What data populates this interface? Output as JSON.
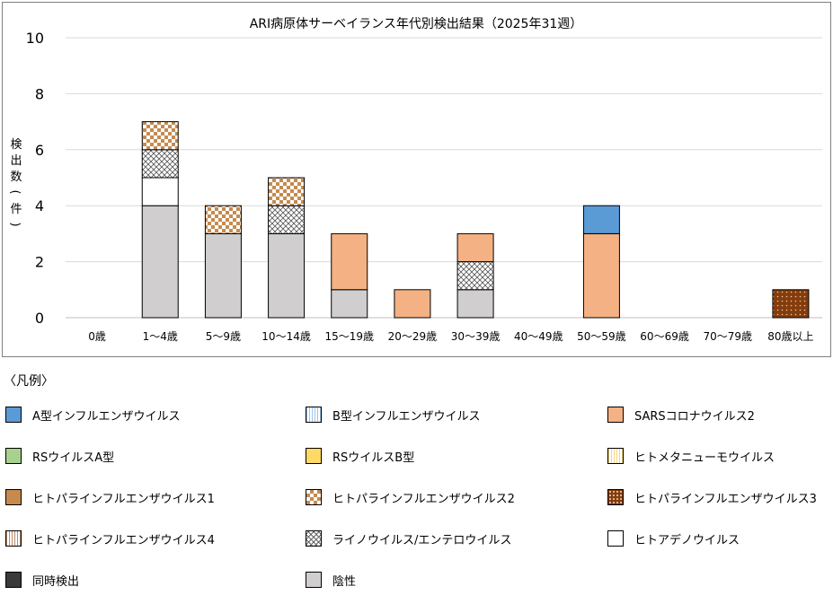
{
  "chart_data": {
    "type": "bar",
    "stacked": true,
    "title": "ARI病原体サーベイランス年代別検出結果（2025年31週）",
    "ylabel": "検出数(件)",
    "xlabel": "",
    "ylim": [
      0,
      10
    ],
    "yticks": [
      0,
      2,
      4,
      6,
      8,
      10
    ],
    "grid": true,
    "categories": [
      "0歳",
      "1〜4歳",
      "5〜9歳",
      "10〜14歳",
      "15〜19歳",
      "20〜29歳",
      "30〜39歳",
      "40〜49歳",
      "50〜59歳",
      "60〜69歳",
      "70〜79歳",
      "80歳以上"
    ],
    "series": [
      {
        "name": "陰性",
        "key": "negative",
        "values": [
          0,
          4,
          3,
          3,
          1,
          0,
          1,
          0,
          0,
          0,
          0,
          0
        ]
      },
      {
        "name": "ヒトアデノウイルス",
        "key": "adeno",
        "values": [
          0,
          1,
          0,
          0,
          0,
          0,
          0,
          0,
          0,
          0,
          0,
          0
        ]
      },
      {
        "name": "ライノウイルス/エンテロウイルス",
        "key": "rhino",
        "values": [
          0,
          1,
          0,
          1,
          0,
          0,
          1,
          0,
          0,
          0,
          0,
          0
        ]
      },
      {
        "name": "ヒトパラインフルエンザウイルス2",
        "key": "hpiv2",
        "values": [
          0,
          1,
          1,
          1,
          0,
          0,
          0,
          0,
          0,
          0,
          0,
          0
        ]
      },
      {
        "name": "SARSコロナウイルス2",
        "key": "sars",
        "values": [
          0,
          0,
          0,
          0,
          2,
          1,
          1,
          0,
          3,
          0,
          0,
          0
        ]
      },
      {
        "name": "A型インフルエンザウイルス",
        "key": "fluA",
        "values": [
          0,
          0,
          0,
          0,
          0,
          0,
          0,
          0,
          1,
          0,
          0,
          0
        ]
      },
      {
        "name": "ヒトパラインフルエンザウイルス3",
        "key": "hpiv3",
        "values": [
          0,
          0,
          0,
          0,
          0,
          0,
          0,
          0,
          0,
          0,
          0,
          1
        ]
      }
    ]
  },
  "legend": {
    "title": "〈凡例〉",
    "items": [
      {
        "label": "A型インフルエンザウイルス",
        "pattern": "solid",
        "color": "#5b9bd5"
      },
      {
        "label": "B型インフルエンザウイルス",
        "pattern": "vlines-blue",
        "color": "#dae8f5"
      },
      {
        "label": "SARSコロナウイルス2",
        "pattern": "solid",
        "color": "#f4b183"
      },
      {
        "label": "RSウイルスA型",
        "pattern": "solid",
        "color": "#a9d18e"
      },
      {
        "label": "RSウイルスB型",
        "pattern": "solid",
        "color": "#ffd966"
      },
      {
        "label": "ヒトメタニューモウイルス",
        "pattern": "vlines-yellow",
        "color": "#fff2cc"
      },
      {
        "label": "ヒトパラインフルエンザウイルス1",
        "pattern": "solid",
        "color": "#c68a4f"
      },
      {
        "label": "ヒトパラインフルエンザウイルス2",
        "pattern": "checker",
        "color": "#c68a4f"
      },
      {
        "label": "ヒトパラインフルエンザウイルス3",
        "pattern": "dots",
        "color": "#843c0c"
      },
      {
        "label": "ヒトパラインフルエンザウイルス4",
        "pattern": "vlines-brown",
        "color": "#f2e0d0"
      },
      {
        "label": "ライノウイルス/エンテロウイルス",
        "pattern": "crosshatch",
        "color": "#ffffff"
      },
      {
        "label": "ヒトアデノウイルス",
        "pattern": "solid",
        "color": "#ffffff"
      },
      {
        "label": "同時検出",
        "pattern": "solid",
        "color": "#3a3a3a"
      },
      {
        "label": "陰性",
        "pattern": "solid",
        "color": "#d0cece"
      }
    ]
  }
}
